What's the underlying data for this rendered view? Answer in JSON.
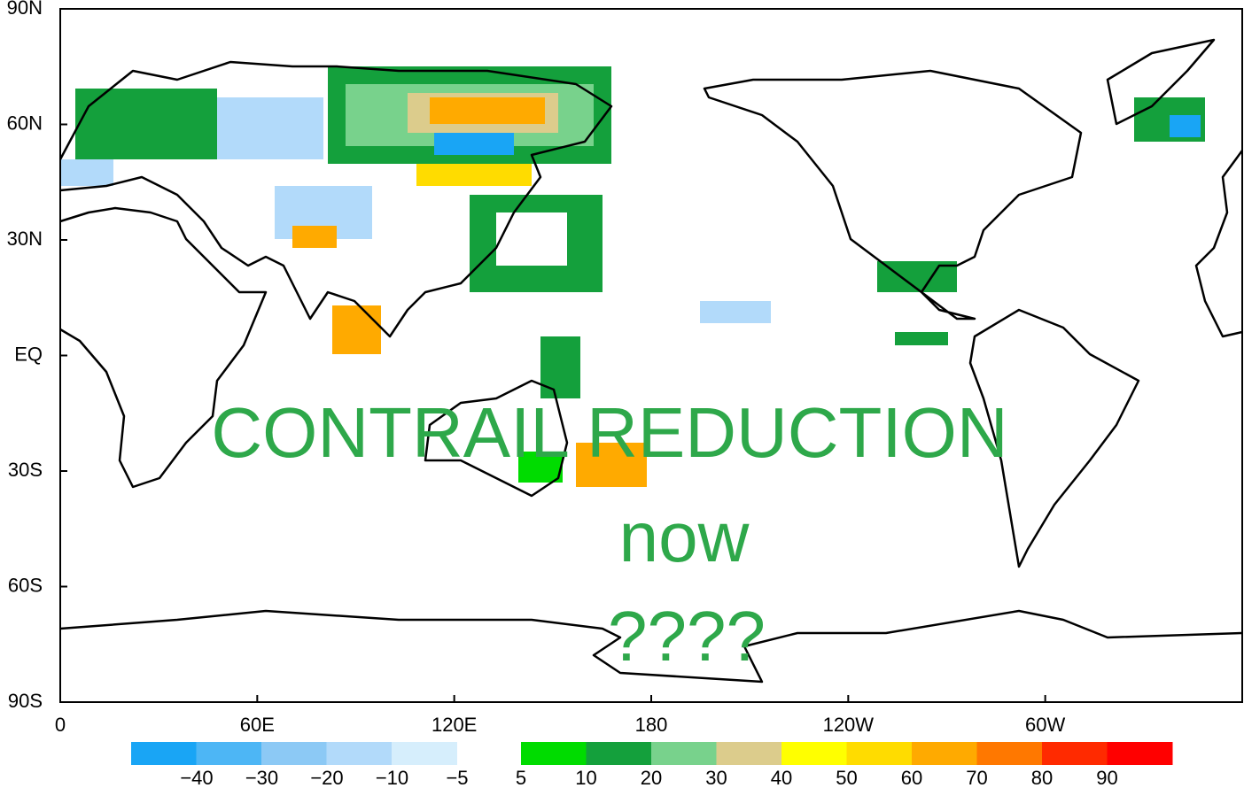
{
  "map": {
    "lat_labels": [
      "90N",
      "60N",
      "30N",
      "EQ",
      "30S",
      "60S",
      "90S"
    ],
    "lon_labels": [
      "0",
      "60E",
      "120E",
      "180",
      "120W",
      "60W"
    ],
    "colorbar": {
      "neg_labels": [
        "−40",
        "−30",
        "−20",
        "−10",
        "−5"
      ],
      "neg_colors": [
        "#19a5f5",
        "#4db6f5",
        "#8cc9f5",
        "#b2dafa",
        "#d6eefc"
      ],
      "pos_labels": [
        "5",
        "10",
        "20",
        "30",
        "40",
        "50",
        "60",
        "70",
        "80",
        "90"
      ],
      "pos_colors": [
        "#00dc00",
        "#14a03c",
        "#78d28c",
        "#dccc8c",
        "#ffff00",
        "#ffdc00",
        "#ffaa00",
        "#ff7800",
        "#ff2a00",
        "#ff0000"
      ]
    },
    "overlay": [
      "CONTRAIL REDUCTION",
      "now",
      "????"
    ]
  }
}
